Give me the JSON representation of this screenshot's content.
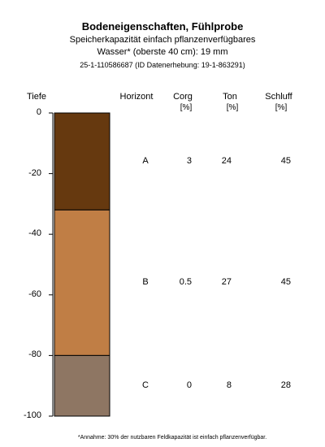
{
  "header": {
    "title": "Bodeneigenschaften, Fühlprobe",
    "subtitle_line1": "Speicherkapazität einfach pflanzenverfügbares",
    "subtitle_line2": "Wasser* (oberste 40 cm): 19 mm",
    "id_line": "25-1-110586687 (ID Datenerhebung: 19-1-863291)"
  },
  "footer": {
    "note": "*Annahme: 30% der nutzbaren Feldkapazität ist einfach pflanzenverfügbar."
  },
  "columns": {
    "depth": "Tiefe",
    "horizon": "Horizont",
    "corg": "Corg",
    "corg_unit": "[%]",
    "ton": "Ton",
    "ton_unit": "[%]",
    "schluff": "Schluff",
    "schluff_unit": "[%]"
  },
  "chart_data": {
    "type": "table",
    "ylabel": "Tiefe",
    "ylim": [
      -100,
      0
    ],
    "yticks": [
      0,
      -20,
      -40,
      -60,
      -80,
      -100
    ],
    "ytick_labels": [
      "0",
      "-20",
      "-40",
      "-60",
      "-80",
      "-100"
    ],
    "layers": [
      {
        "horizon": "A",
        "top": 0,
        "bottom": -32,
        "color": "#66390f",
        "corg": "3",
        "ton": "24",
        "schluff": "45"
      },
      {
        "horizon": "B",
        "top": -32,
        "bottom": -80,
        "color": "#c07e45",
        "corg": "0.5",
        "ton": "27",
        "schluff": "45"
      },
      {
        "horizon": "C",
        "top": -80,
        "bottom": -100,
        "color": "#8e7663",
        "corg": "0",
        "ton": "8",
        "schluff": "28"
      }
    ]
  }
}
